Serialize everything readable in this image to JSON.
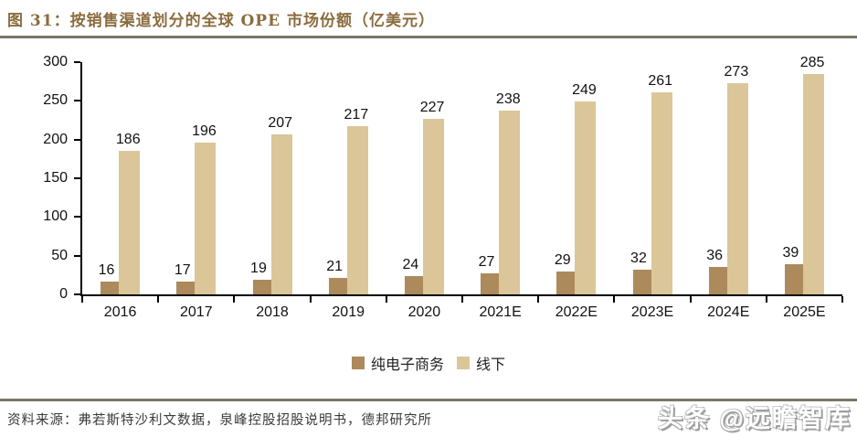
{
  "chart_data": {
    "type": "bar",
    "title": "图 31：按销售渠道划分的全球 OPE 市场份额（亿美元）",
    "categories": [
      "2016",
      "2017",
      "2018",
      "2019",
      "2020",
      "2021E",
      "2022E",
      "2023E",
      "2024E",
      "2025E"
    ],
    "series": [
      {
        "name": "纯电子商务",
        "color": "#ac8a5c",
        "values": [
          16,
          17,
          19,
          21,
          24,
          27,
          29,
          32,
          36,
          39
        ]
      },
      {
        "name": "线下",
        "color": "#dbc699",
        "values": [
          186,
          196,
          207,
          217,
          227,
          238,
          249,
          261,
          273,
          285
        ]
      }
    ],
    "xlabel": "",
    "ylabel": "",
    "ylim": [
      0,
      300
    ],
    "yticks": [
      0,
      50,
      100,
      150,
      200,
      250,
      300
    ],
    "grid": false,
    "legend_position": "bottom-center"
  },
  "footer": {
    "source": "资料来源：弗若斯特沙利文数据，泉峰控股招股说明书，德邦研究所"
  },
  "watermark": {
    "text": "头条 @远瞻智库"
  },
  "colors": {
    "title": "#8b6c3e",
    "rule": "#7b7565",
    "axis": "#000000",
    "value_labels": "#111111"
  }
}
